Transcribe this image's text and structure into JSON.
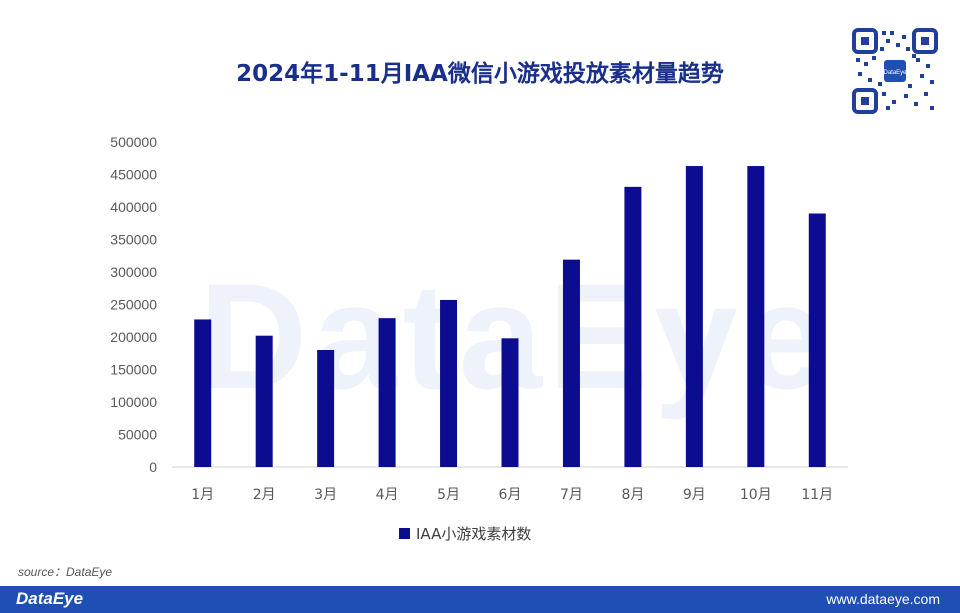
{
  "header": {
    "title": "2024年1-11月IAA微信小游戏投放素材量趋势",
    "qr_label": "DataEye"
  },
  "watermark": "DataEye",
  "chart_data": {
    "type": "bar",
    "title": "2024年1-11月IAA微信小游戏投放素材量趋势",
    "categories": [
      "1月",
      "2月",
      "3月",
      "4月",
      "5月",
      "6月",
      "7月",
      "8月",
      "9月",
      "10月",
      "11月"
    ],
    "series": [
      {
        "name": "IAA小游戏素材数",
        "values": [
          227000,
          202000,
          180000,
          229000,
          257000,
          198000,
          319000,
          431000,
          463000,
          463000,
          390000
        ],
        "color": "#0b0c8f"
      }
    ],
    "yticks": [
      "0",
      "50000",
      "100000",
      "150000",
      "200000",
      "250000",
      "300000",
      "350000",
      "400000",
      "450000",
      "500000"
    ],
    "ylim": [
      0,
      500000
    ],
    "xlabel": "",
    "ylabel": "",
    "grid": false,
    "legend_position": "bottom"
  },
  "source": "source：DataEye",
  "footer": {
    "brand": "DataEye",
    "url": "www.dataeye.com"
  },
  "colors": {
    "title": "#1a2f8c",
    "bar": "#0b0c8f",
    "footer": "#1f4fb5"
  }
}
